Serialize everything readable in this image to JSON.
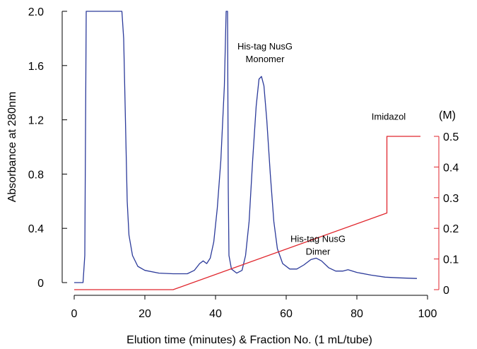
{
  "chart_data": {
    "type": "line",
    "xlabel": "Elution time (minutes) & Fraction No. (1 mL/tube)",
    "ylabel": "Absorbance at 280nm",
    "y2label": "(M)",
    "xlim": [
      0,
      100
    ],
    "ylim": [
      0,
      2.0
    ],
    "y2lim": [
      0,
      0.5
    ],
    "x_ticks": [
      "0",
      "20",
      "40",
      "60",
      "80",
      "100"
    ],
    "y_ticks": [
      "0",
      "0.4",
      "0.8",
      "1.2",
      "1.6",
      "2.0"
    ],
    "y2_ticks": [
      "0",
      "0.1",
      "0.2",
      "0.3",
      "0.4",
      "0.5"
    ],
    "grid": false,
    "colors": {
      "absorbance": "#2b3a9a",
      "imidazol": "#e0262d",
      "axis": "#000000",
      "right_axis": "#e0262d"
    },
    "annotations": [
      {
        "lines": [
          "His-tag NusG",
          "Monomer"
        ],
        "x": 54,
        "y": 1.72
      },
      {
        "lines": [
          "His-tag NusG",
          "Dimer"
        ],
        "x": 69,
        "y": 0.3
      },
      {
        "lines": [
          "Imidazol"
        ],
        "x": 89,
        "y": 1.2
      }
    ],
    "series": [
      {
        "key": "absorbance",
        "axis": "left",
        "points": [
          [
            0,
            0
          ],
          [
            2.5,
            0
          ],
          [
            3.0,
            0.2
          ],
          [
            3.4,
            2.0
          ],
          [
            13.5,
            2.0
          ],
          [
            14.0,
            1.8
          ],
          [
            14.5,
            1.2
          ],
          [
            15.0,
            0.6
          ],
          [
            15.5,
            0.35
          ],
          [
            16.5,
            0.2
          ],
          [
            18,
            0.12
          ],
          [
            20,
            0.09
          ],
          [
            24,
            0.07
          ],
          [
            28,
            0.065
          ],
          [
            32,
            0.065
          ],
          [
            34,
            0.09
          ],
          [
            35.5,
            0.14
          ],
          [
            36.5,
            0.16
          ],
          [
            37.5,
            0.14
          ],
          [
            38.5,
            0.18
          ],
          [
            39.5,
            0.3
          ],
          [
            40.5,
            0.55
          ],
          [
            41.5,
            0.9
          ],
          [
            42.5,
            1.45
          ],
          [
            43.0,
            2.0
          ],
          [
            43.4,
            2.0
          ],
          [
            43.6,
            0.7
          ],
          [
            43.8,
            0.2
          ],
          [
            44.5,
            0.1
          ],
          [
            46,
            0.07
          ],
          [
            47.5,
            0.09
          ],
          [
            48.5,
            0.2
          ],
          [
            49.5,
            0.45
          ],
          [
            50.5,
            0.9
          ],
          [
            51.5,
            1.3
          ],
          [
            52.3,
            1.5
          ],
          [
            53.0,
            1.52
          ],
          [
            53.7,
            1.45
          ],
          [
            54.5,
            1.2
          ],
          [
            55.5,
            0.8
          ],
          [
            56.5,
            0.45
          ],
          [
            57.5,
            0.25
          ],
          [
            59,
            0.14
          ],
          [
            61,
            0.1
          ],
          [
            63,
            0.1
          ],
          [
            65,
            0.13
          ],
          [
            67,
            0.17
          ],
          [
            68.5,
            0.18
          ],
          [
            70,
            0.16
          ],
          [
            72,
            0.11
          ],
          [
            74,
            0.085
          ],
          [
            76,
            0.085
          ],
          [
            77.5,
            0.095
          ],
          [
            80,
            0.075
          ],
          [
            84,
            0.055
          ],
          [
            88,
            0.04
          ],
          [
            92,
            0.035
          ],
          [
            97,
            0.03
          ]
        ]
      },
      {
        "key": "imidazol",
        "axis": "right",
        "points": [
          [
            0,
            0
          ],
          [
            28,
            0
          ],
          [
            88.5,
            0.25
          ],
          [
            88.5,
            0.5
          ],
          [
            98,
            0.5
          ]
        ]
      }
    ]
  }
}
